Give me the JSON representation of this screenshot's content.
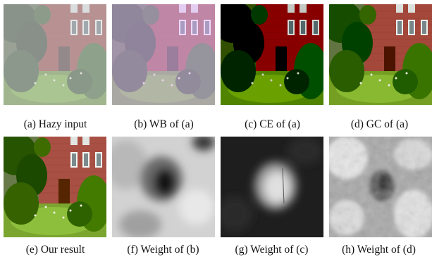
{
  "figure": {
    "panels": [
      {
        "id": "a",
        "caption": "(a) Hazy input"
      },
      {
        "id": "b",
        "caption": "(b) WB of (a)"
      },
      {
        "id": "c",
        "caption": "(c) CE of (a)"
      },
      {
        "id": "d",
        "caption": "(d) GC of (a)"
      },
      {
        "id": "e",
        "caption": "(e) Our result"
      },
      {
        "id": "f",
        "caption": "(f) Weight of (b)"
      },
      {
        "id": "g",
        "caption": "(g) Weight of (c)"
      },
      {
        "id": "h",
        "caption": "(h) Weight of (d)"
      }
    ]
  }
}
